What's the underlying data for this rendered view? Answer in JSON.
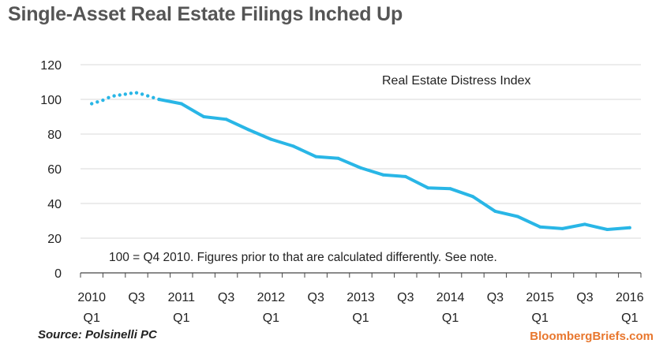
{
  "title": "Single-Asset Real Estate Filings Inched Up",
  "source": "Source: Polsinelli PC",
  "brand": "BloombergBriefs.com",
  "colors": {
    "line": "#29b6e6",
    "grid": "#d9d9d9",
    "text": "#222222",
    "brand": "#e8772e"
  },
  "chart_data": {
    "type": "line",
    "title": "Real Estate Distress Index",
    "annotation": "100 = Q4 2010. Figures prior to that are calculated differently. See note.",
    "ylim": [
      0,
      120
    ],
    "yticks": [
      0,
      20,
      40,
      60,
      80,
      100,
      120
    ],
    "grid": "horizontal",
    "x_tick_labels": [
      {
        "line1": "2010",
        "line2": "Q1",
        "index": 0
      },
      {
        "line1": "Q3",
        "line2": "",
        "index": 2
      },
      {
        "line1": "2011",
        "line2": "Q1",
        "index": 4
      },
      {
        "line1": "Q3",
        "line2": "",
        "index": 6
      },
      {
        "line1": "2012",
        "line2": "Q1",
        "index": 8
      },
      {
        "line1": "Q3",
        "line2": "",
        "index": 10
      },
      {
        "line1": "2013",
        "line2": "Q1",
        "index": 12
      },
      {
        "line1": "Q3",
        "line2": "",
        "index": 14
      },
      {
        "line1": "2014",
        "line2": "Q1",
        "index": 16
      },
      {
        "line1": "Q3",
        "line2": "",
        "index": 18
      },
      {
        "line1": "2015",
        "line2": "Q1",
        "index": 20
      },
      {
        "line1": "Q3",
        "line2": "",
        "index": 22
      },
      {
        "line1": "2016",
        "line2": "Q1",
        "index": 24
      }
    ],
    "categories": [
      "2010 Q1",
      "2010 Q2",
      "2010 Q3",
      "2010 Q4",
      "2011 Q1",
      "2011 Q2",
      "2011 Q3",
      "2011 Q4",
      "2012 Q1",
      "2012 Q2",
      "2012 Q3",
      "2012 Q4",
      "2013 Q1",
      "2013 Q2",
      "2013 Q3",
      "2013 Q4",
      "2014 Q1",
      "2014 Q2",
      "2014 Q3",
      "2014 Q4",
      "2015 Q1",
      "2015 Q2",
      "2015 Q3",
      "2015 Q4",
      "2016 Q1"
    ],
    "dotted_series": {
      "x": [
        0,
        0.25,
        0.5,
        0.75,
        1,
        1.25,
        1.5,
        1.75,
        2,
        2.25,
        2.5,
        2.75,
        3
      ],
      "values": [
        97.5,
        98.5,
        99.5,
        101,
        102,
        102.5,
        103,
        103.5,
        103.8,
        103,
        102,
        101,
        100
      ]
    },
    "series": [
      {
        "x": [
          3,
          4,
          5,
          6,
          7,
          8,
          9,
          10,
          11,
          12,
          13,
          14,
          15,
          16,
          17,
          18,
          19,
          20,
          21,
          22,
          23,
          24
        ],
        "values": [
          100,
          97.5,
          90,
          88.5,
          82.5,
          77,
          73,
          67,
          66,
          60.5,
          56.5,
          55.5,
          49,
          48.5,
          44,
          35.5,
          32.5,
          26.5,
          25.5,
          28,
          25,
          26
        ]
      }
    ]
  }
}
